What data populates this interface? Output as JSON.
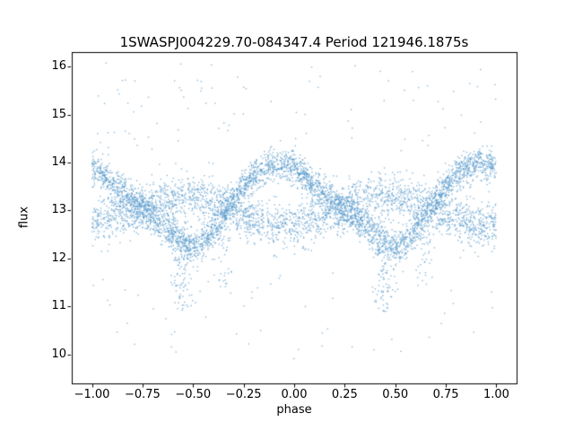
{
  "figure": {
    "background": "#ffffff",
    "frame_color": "#000000"
  },
  "chart_data": {
    "type": "scatter",
    "title": "1SWASPJ004229.70-084347.4 Period 121946.1875s",
    "xlabel": "phase",
    "ylabel": "flux",
    "xlim": [
      -1.1,
      1.1
    ],
    "ylim": [
      9.4,
      16.3
    ],
    "xticks": [
      -1.0,
      -0.75,
      -0.5,
      -0.25,
      0.0,
      0.25,
      0.5,
      0.75,
      1.0
    ],
    "xtick_labels": [
      "−1.00",
      "−0.75",
      "−0.50",
      "−0.25",
      "0.00",
      "0.25",
      "0.50",
      "0.75",
      "1.00"
    ],
    "yticks": [
      10,
      11,
      12,
      13,
      14,
      15,
      16
    ],
    "ytick_labels": [
      "10",
      "11",
      "12",
      "13",
      "14",
      "15",
      "16"
    ],
    "grid": false,
    "legend": "none",
    "marker_color": "#4f94c8",
    "marker_alpha": 0.65,
    "marker_size_px": 1.4,
    "n_points_estimate": 6600,
    "description": "Phase-folded light curve; two crossing wavy bands repeating with period 1.0 in phase, eclipse-like downward streaks near phase -0.55/0.45 and -0.35/0.65, sparse outliers between flux 10 and 16.",
    "point_cloud": {
      "seed": 20,
      "phase_range": [
        -1.0,
        1.0
      ],
      "bands": [
        {
          "name": "primary-variation-band",
          "n": 3600,
          "sigma": 0.17,
          "control_x": [
            -0.5,
            -0.4,
            -0.3,
            -0.2,
            -0.1,
            0.0,
            0.1,
            0.2,
            0.3,
            0.4,
            0.5
          ],
          "control_flux": [
            12.2,
            12.55,
            13.25,
            13.75,
            13.98,
            13.9,
            13.55,
            13.2,
            12.85,
            12.5,
            12.2
          ]
        },
        {
          "name": "secondary-band",
          "n": 2600,
          "sigma": 0.24,
          "control_x": [
            -0.5,
            -0.35,
            -0.25,
            -0.1,
            0.0,
            0.15,
            0.25,
            0.35,
            0.5
          ],
          "control_flux": [
            13.3,
            13.1,
            12.9,
            12.65,
            12.7,
            12.9,
            13.05,
            13.2,
            13.3
          ]
        }
      ],
      "eclipse_streaks": [
        {
          "centers": [
            0.45,
            -0.55
          ],
          "n_per_center": 90,
          "x_sigma": 0.028,
          "flux_min": 10.9,
          "flux_max": 12.4
        },
        {
          "centers": [
            0.65,
            -0.35
          ],
          "n_per_center": 35,
          "x_sigma": 0.02,
          "flux_min": 11.4,
          "flux_max": 12.5
        }
      ],
      "outliers": [
        {
          "name": "bright-outliers",
          "n": 90,
          "flux_min": 14.2,
          "flux_max": 16.1
        },
        {
          "name": "faint-outliers",
          "n": 52,
          "flux_min": 9.9,
          "flux_max": 11.7
        }
      ]
    }
  }
}
